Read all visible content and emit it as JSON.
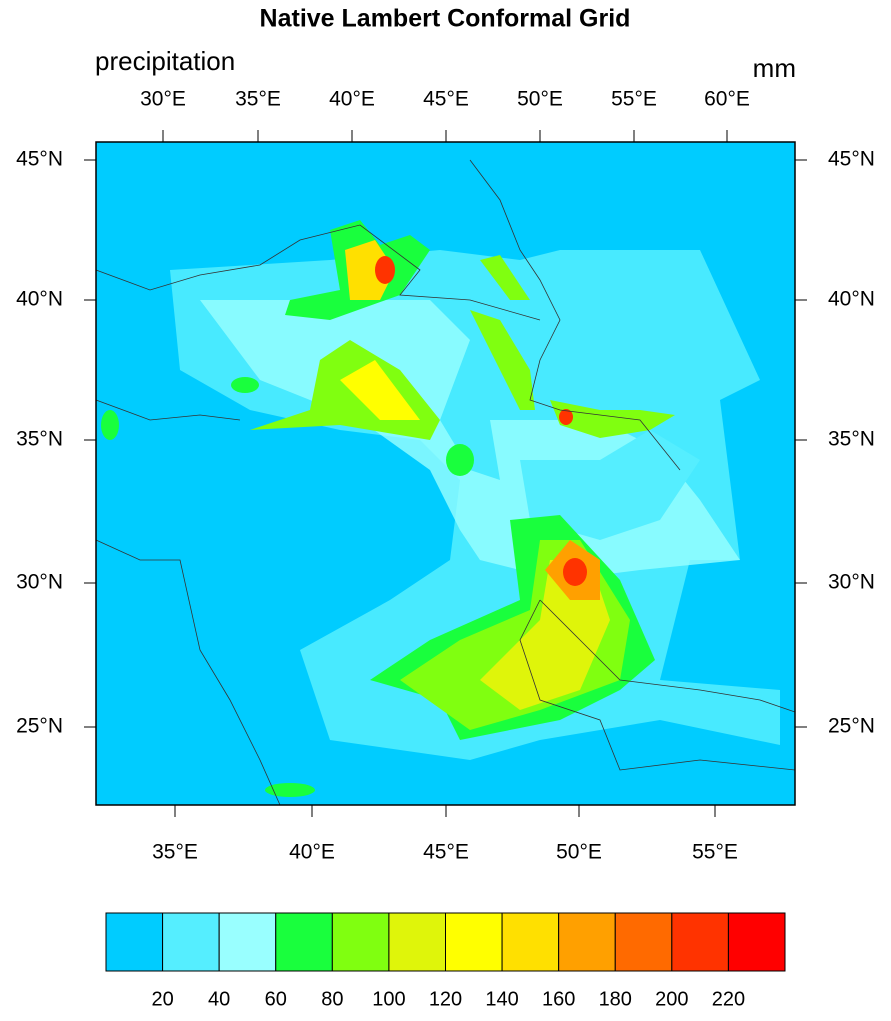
{
  "title": "Native Lambert Conformal Grid",
  "left_label": "precipitation",
  "right_label": "mm",
  "top_ticks": [
    "30°E",
    "35°E",
    "40°E",
    "45°E",
    "50°E",
    "55°E",
    "60°E"
  ],
  "bottom_ticks": [
    "35°E",
    "40°E",
    "45°E",
    "50°E",
    "55°E"
  ],
  "left_ticks": [
    "45°N",
    "40°N",
    "35°N",
    "30°N",
    "25°N"
  ],
  "right_ticks": [
    "45°N",
    "40°N",
    "35°N",
    "30°N",
    "25°N"
  ],
  "colorbar": {
    "colors": [
      "#00ccff",
      "#55eeff",
      "#99ffff",
      "#19ff3d",
      "#80ff10",
      "#dff50a",
      "#ffff00",
      "#ffe000",
      "#ffa000",
      "#ff6a00",
      "#ff3300",
      "#ff0000"
    ],
    "levels": [
      20,
      40,
      60,
      80,
      100,
      120,
      140,
      160,
      180,
      200,
      220
    ]
  }
}
